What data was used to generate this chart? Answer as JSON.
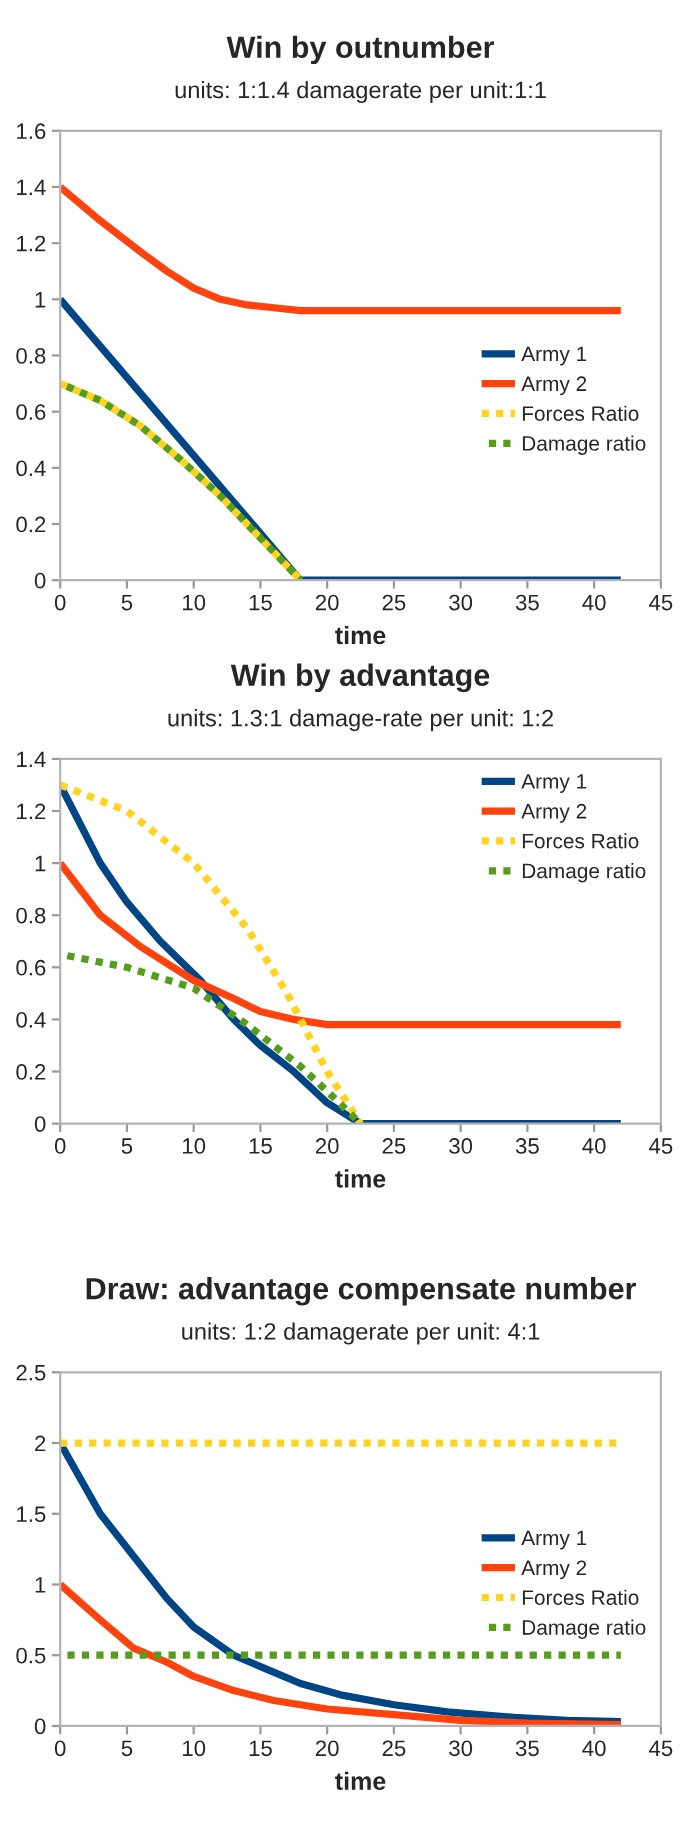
{
  "chart_data": [
    {
      "type": "line",
      "title": "Win by outnumber",
      "subtitle": "units: 1:1.4 damagerate per unit:1:1",
      "xlabel": "time",
      "xlim": [
        0,
        45
      ],
      "xticks": [
        0,
        5,
        10,
        15,
        20,
        25,
        30,
        35,
        40,
        45
      ],
      "ylim": [
        0,
        1.6
      ],
      "yticks": [
        0,
        0.2,
        0.4,
        0.6,
        0.8,
        1,
        1.2,
        1.4,
        1.6
      ],
      "grid": false,
      "legend": "right",
      "series": [
        {
          "name": "Army 1",
          "color": "#004586",
          "line_style": "solid",
          "x": [
            0,
            18,
            42
          ],
          "values": [
            1.0,
            0,
            0
          ]
        },
        {
          "name": "Army 2",
          "color": "#ff420e",
          "line_style": "solid",
          "x": [
            0,
            3,
            6,
            8,
            10,
            12,
            14,
            16,
            18,
            42
          ],
          "values": [
            1.4,
            1.28,
            1.17,
            1.1,
            1.04,
            1.0,
            0.98,
            0.97,
            0.96,
            0.96
          ]
        },
        {
          "name": "Forces Ratio",
          "color": "#ffd320",
          "line_style": "dotted",
          "x": [
            0,
            3,
            6,
            9,
            12,
            15,
            18
          ],
          "values": [
            0.7,
            0.64,
            0.55,
            0.43,
            0.3,
            0.15,
            0
          ]
        },
        {
          "name": "Damage ratio",
          "color": "#579d1c",
          "line_style": "dotted",
          "x": [
            0,
            3,
            6,
            9,
            12,
            15,
            18
          ],
          "values": [
            0.7,
            0.64,
            0.55,
            0.43,
            0.3,
            0.15,
            0
          ]
        }
      ]
    },
    {
      "type": "line",
      "title": "Win by advantage",
      "subtitle": "units: 1.3:1 damage-rate per unit: 1:2",
      "xlabel": "time",
      "xlim": [
        0,
        45
      ],
      "xticks": [
        0,
        5,
        10,
        15,
        20,
        25,
        30,
        35,
        40,
        45
      ],
      "ylim": [
        0,
        1.4
      ],
      "yticks": [
        0,
        0.2,
        0.4,
        0.6,
        0.8,
        1,
        1.2,
        1.4
      ],
      "grid": false,
      "legend": "top right",
      "series": [
        {
          "name": "Army 1",
          "color": "#004586",
          "line_style": "solid",
          "x": [
            0,
            3,
            5,
            7.5,
            10.5,
            13,
            15,
            17.5,
            20,
            22.5,
            42
          ],
          "values": [
            1.3,
            1.0,
            0.85,
            0.7,
            0.55,
            0.4,
            0.3,
            0.2,
            0.08,
            0,
            0
          ]
        },
        {
          "name": "Army 2",
          "color": "#ff420e",
          "line_style": "solid",
          "x": [
            0,
            3,
            6,
            10,
            13,
            15,
            17.5,
            20,
            42
          ],
          "values": [
            1.0,
            0.8,
            0.68,
            0.55,
            0.48,
            0.43,
            0.4,
            0.38,
            0.38
          ]
        },
        {
          "name": "Forces Ratio",
          "color": "#ffd320",
          "line_style": "dotted",
          "x": [
            0,
            5,
            10,
            14,
            17,
            20,
            22.5
          ],
          "values": [
            1.3,
            1.2,
            1.0,
            0.75,
            0.5,
            0.2,
            0
          ]
        },
        {
          "name": "Damage ratio",
          "color": "#579d1c",
          "line_style": "dotted",
          "x": [
            0,
            5,
            10,
            14,
            18,
            20.5,
            22.5
          ],
          "values": [
            0.65,
            0.6,
            0.52,
            0.38,
            0.22,
            0.1,
            0
          ]
        }
      ]
    },
    {
      "type": "line",
      "title": "Draw: advantage compensate number",
      "subtitle": "units: 1:2 damagerate per unit: 4:1",
      "xlabel": "time",
      "xlim": [
        0,
        45
      ],
      "xticks": [
        0,
        5,
        10,
        15,
        20,
        25,
        30,
        35,
        40,
        45
      ],
      "ylim": [
        0,
        2.5
      ],
      "yticks": [
        0,
        0.5,
        1,
        1.5,
        2,
        2.5
      ],
      "grid": false,
      "legend": "right",
      "series": [
        {
          "name": "Army 1",
          "color": "#004586",
          "line_style": "solid",
          "x": [
            0,
            3,
            5.5,
            8,
            10,
            13,
            15.5,
            18,
            21,
            25,
            29,
            34,
            38,
            42
          ],
          "values": [
            2.0,
            1.5,
            1.2,
            0.9,
            0.7,
            0.5,
            0.4,
            0.3,
            0.22,
            0.15,
            0.1,
            0.06,
            0.04,
            0.03
          ]
        },
        {
          "name": "Army 2",
          "color": "#ff420e",
          "line_style": "solid",
          "x": [
            0,
            3,
            5.5,
            8,
            10,
            13,
            16,
            20,
            25,
            30,
            35,
            42
          ],
          "values": [
            1.0,
            0.75,
            0.55,
            0.45,
            0.35,
            0.25,
            0.18,
            0.12,
            0.08,
            0.04,
            0.02,
            0.01
          ]
        },
        {
          "name": "Forces Ratio",
          "color": "#ffd320",
          "line_style": "dotted",
          "x": [
            0,
            42
          ],
          "values": [
            2,
            2
          ]
        },
        {
          "name": "Damage ratio",
          "color": "#579d1c",
          "line_style": "dotted",
          "x": [
            0,
            42
          ],
          "values": [
            0.5,
            0.5
          ]
        }
      ]
    }
  ]
}
